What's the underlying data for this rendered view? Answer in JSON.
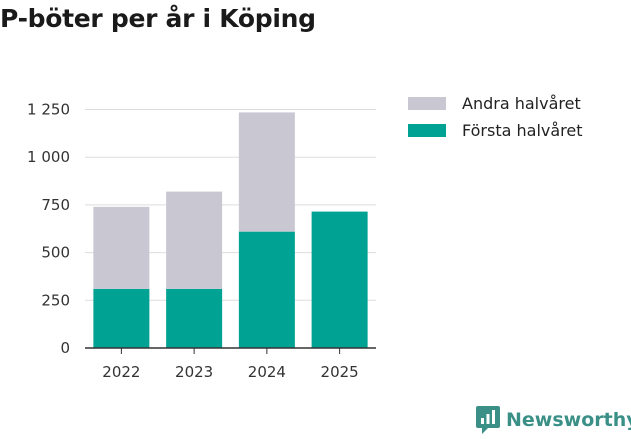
{
  "colors": {
    "first": "#00a294",
    "second": "#c9c8d2",
    "brand": "#3a8f87"
  },
  "brand": {
    "name": "Newsworthy"
  },
  "chart_data": {
    "type": "bar",
    "stacked": true,
    "title": "P-böter per år i Köping",
    "categories": [
      "2022",
      "2023",
      "2024",
      "2025"
    ],
    "series": [
      {
        "name": "Första halvåret",
        "values": [
          310,
          310,
          610,
          715
        ]
      },
      {
        "name": "Andra halvåret",
        "values": [
          430,
          510,
          625,
          0
        ]
      }
    ],
    "ylim": [
      0,
      1300
    ],
    "yticks": [
      0,
      250,
      500,
      750,
      1000,
      1250
    ],
    "ytick_labels": [
      "0",
      "250",
      "500",
      "750",
      "1 000",
      "1 250"
    ],
    "xlabel": "",
    "ylabel": "",
    "grid": true,
    "legend_position": "right"
  },
  "legend": [
    {
      "label": "Andra halvåret",
      "color_key": "second"
    },
    {
      "label": "Första halvåret",
      "color_key": "first"
    }
  ]
}
